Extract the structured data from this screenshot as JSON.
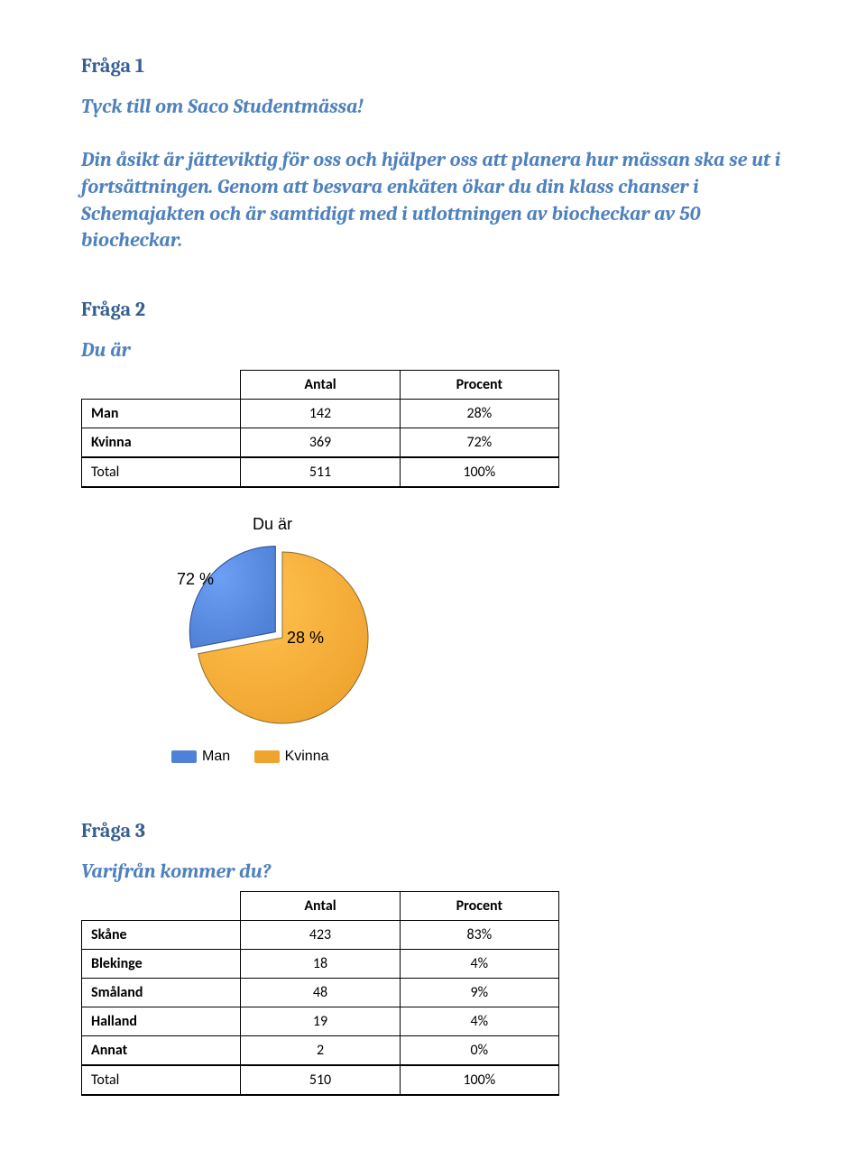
{
  "q1": {
    "heading": "Fråga 1",
    "text": "Tyck till om Saco Studentmässa!<br/><br/>Din åsikt är jätteviktig för oss och hjälper oss att planera hur mässan ska se ut i fortsättningen. Genom att besvara enkäten ökar du din klass chanser i Schemajakten och är samtidigt med i utlottningen av biocheckar av 50 biocheckar."
  },
  "q2": {
    "heading": "Fråga 2",
    "subheading": "Du är",
    "columns": [
      "Antal",
      "Procent"
    ],
    "rows": [
      {
        "label": "Man",
        "antal": "142",
        "procent": "28%"
      },
      {
        "label": "Kvinna",
        "antal": "369",
        "procent": "72%"
      }
    ],
    "total": {
      "label": "Total",
      "antal": "511",
      "procent": "100%"
    }
  },
  "chart": {
    "title": "Du är",
    "type": "pie",
    "slices": [
      {
        "label": "Kvinna",
        "pct": 72,
        "color": "#f0a430",
        "text": "72 %"
      },
      {
        "label": "Man",
        "pct": 28,
        "color": "#4f81d6",
        "text": "28 %"
      }
    ],
    "pull_slice_index": 1,
    "pull_distance": 10,
    "radius": 95,
    "border_color": "#8a6a2c",
    "border_color2": "#2a4a8a",
    "label_font": "Arial",
    "label_fontsize": 18,
    "title_fontsize": 18,
    "legend": [
      {
        "swatch": "#4f81d6",
        "text": "Man"
      },
      {
        "swatch": "#f0a430",
        "text": "Kvinna"
      }
    ],
    "background": "#ffffff"
  },
  "q3": {
    "heading": "Fråga 3",
    "subheading": "Varifrån kommer du?",
    "columns": [
      "Antal",
      "Procent"
    ],
    "rows": [
      {
        "label": "Skåne",
        "antal": "423",
        "procent": "83%"
      },
      {
        "label": "Blekinge",
        "antal": "18",
        "procent": "4%"
      },
      {
        "label": "Småland",
        "antal": "48",
        "procent": "9%"
      },
      {
        "label": "Halland",
        "antal": "19",
        "procent": "4%"
      },
      {
        "label": "Annat",
        "antal": "2",
        "procent": "0%"
      }
    ],
    "total": {
      "label": "Total",
      "antal": "510",
      "procent": "100%"
    }
  }
}
